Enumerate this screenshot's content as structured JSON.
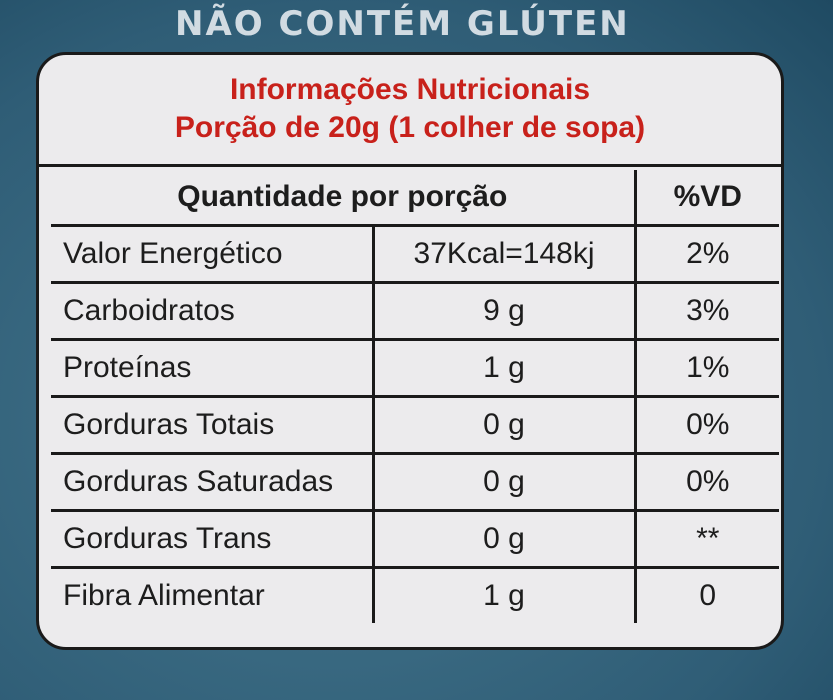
{
  "banner": {
    "text": "NÃO CONTÉM GLÚTEN"
  },
  "label": {
    "title": "Informações Nutricionais",
    "serving": "Porção de 20g (1 colher de sopa)",
    "header": {
      "quantity": "Quantidade por porção",
      "dv": "%VD"
    },
    "rows": [
      {
        "nutrient": "Valor Energético",
        "amount": "37Kcal=148kj",
        "dv": "2%"
      },
      {
        "nutrient": "Carboidratos",
        "amount": "9 g",
        "dv": "3%"
      },
      {
        "nutrient": "Proteínas",
        "amount": "1 g",
        "dv": "1%"
      },
      {
        "nutrient": "Gorduras Totais",
        "amount": "0 g",
        "dv": "0%"
      },
      {
        "nutrient": "Gorduras Saturadas",
        "amount": "0 g",
        "dv": "0%"
      },
      {
        "nutrient": "Gorduras Trans",
        "amount": "0 g",
        "dv": "**"
      },
      {
        "nutrient": "Fibra Alimentar",
        "amount": "1 g",
        "dv": "0"
      }
    ]
  },
  "colors": {
    "background": "#3a6a82",
    "card": "#ecebed",
    "title_red": "#c8211b",
    "border": "#1a1a1a"
  }
}
